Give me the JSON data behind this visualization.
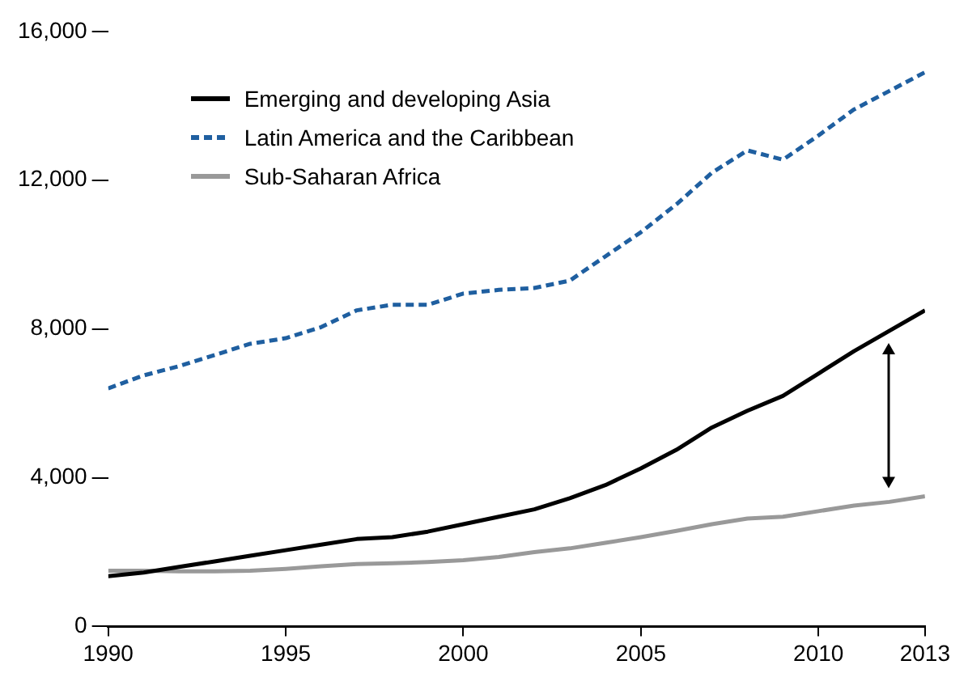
{
  "chart_data": {
    "type": "line",
    "x": [
      1990,
      1991,
      1992,
      1993,
      1994,
      1995,
      1996,
      1997,
      1998,
      1999,
      2000,
      2001,
      2002,
      2003,
      2004,
      2005,
      2006,
      2007,
      2008,
      2009,
      2010,
      2011,
      2012,
      2013
    ],
    "series": [
      {
        "name": "Emerging and developing Asia",
        "color": "#000000",
        "line_style": "solid",
        "values": [
          1350,
          1450,
          1600,
          1750,
          1900,
          2050,
          2200,
          2350,
          2400,
          2550,
          2750,
          2950,
          3150,
          3450,
          3800,
          4250,
          4750,
          5350,
          5800,
          6200,
          6800,
          7400,
          7950,
          8500
        ]
      },
      {
        "name": "Latin America and the Caribbean",
        "color": "#1f5fa0",
        "line_style": "dashed",
        "values": [
          6400,
          6750,
          7000,
          7300,
          7600,
          7750,
          8050,
          8500,
          8650,
          8650,
          8950,
          9050,
          9100,
          9300,
          9950,
          10600,
          11350,
          12200,
          12800,
          12550,
          13200,
          13900,
          14400,
          14900
        ]
      },
      {
        "name": "Sub-Saharan Africa",
        "color": "#999999",
        "line_style": "solid",
        "values": [
          1500,
          1500,
          1480,
          1480,
          1500,
          1550,
          1620,
          1680,
          1700,
          1730,
          1780,
          1870,
          2000,
          2100,
          2250,
          2400,
          2570,
          2750,
          2900,
          2950,
          3100,
          3250,
          3350,
          3500
        ]
      }
    ],
    "xlim": [
      1990,
      2013
    ],
    "xticks": [
      1990,
      1995,
      2000,
      2005,
      2010,
      2013
    ],
    "ylim": [
      0,
      16000
    ],
    "yticks": [
      0,
      {
        "value": 4000,
        "label": "4,000"
      },
      {
        "value": 8000,
        "label": "8,000"
      },
      {
        "value": 12000,
        "label": "12,000"
      },
      {
        "value": 16000,
        "label": "16,000"
      }
    ],
    "grid": false,
    "legend": "top left",
    "marker": "none"
  }
}
